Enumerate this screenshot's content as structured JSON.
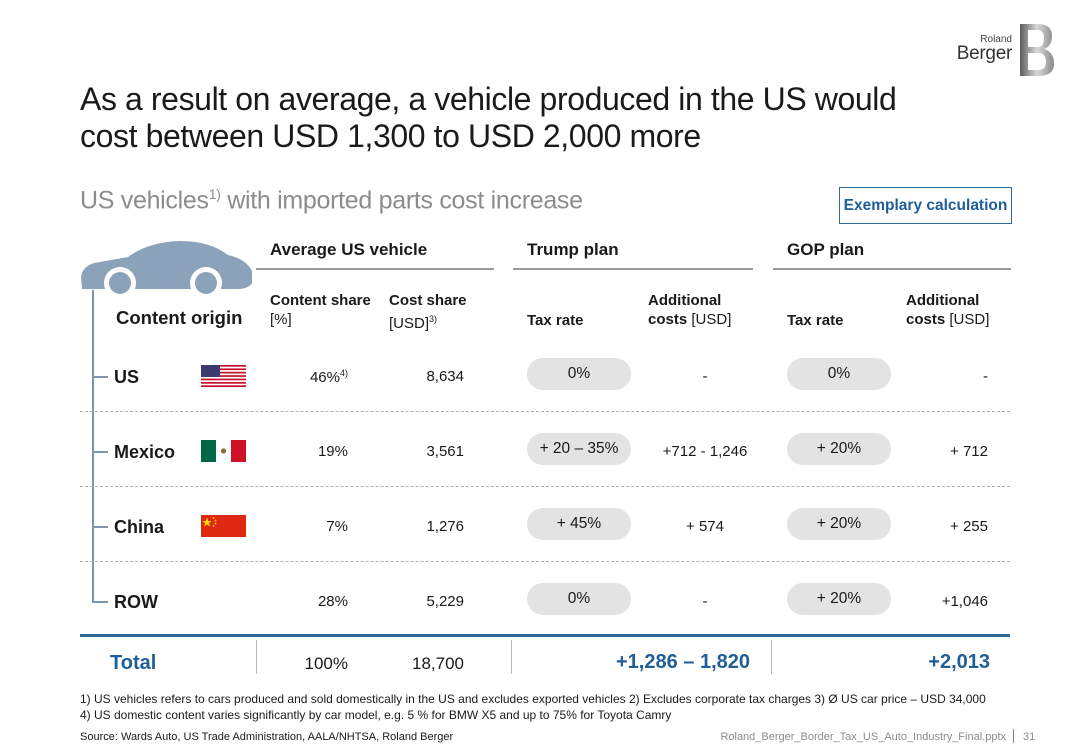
{
  "logo": {
    "line1": "Roland",
    "line2": "Berger"
  },
  "title": "As a result on average, a vehicle produced in the US would cost between USD 1,300 to USD 2,000 more",
  "subtitle": {
    "pre": "US vehicles",
    "sup": "1)",
    "post": " with imported parts cost increase"
  },
  "badge": "Exemplary calculation",
  "groups": {
    "avg": "Average US vehicle",
    "trump": "Trump plan",
    "gop": "GOP plan"
  },
  "headers": {
    "origin": "Content origin",
    "content_share_b": "Content share",
    "content_share_u": "[%]",
    "cost_share_b": "Cost share",
    "cost_share_u": "[USD]",
    "cost_share_sup": "3)",
    "tax_rate": "Tax rate",
    "add_costs_b": "Additional",
    "add_costs_b2": "costs",
    "add_costs_u": " [USD]"
  },
  "rows": [
    {
      "origin": "US",
      "share": "46%",
      "share_sup": "4)",
      "cost": "8,634",
      "trump_tax": "0%",
      "trump_add": "-",
      "gop_tax": "0%",
      "gop_add": "-"
    },
    {
      "origin": "Mexico",
      "share": "19%",
      "cost": "3,561",
      "trump_tax": "+ 20 – 35%",
      "trump_add": "+712 - 1,246",
      "gop_tax": "+ 20%",
      "gop_add": "+ 712"
    },
    {
      "origin": "China",
      "share": "7%",
      "cost": "1,276",
      "trump_tax": "+ 45%",
      "trump_add": "+ 574",
      "gop_tax": "+ 20%",
      "gop_add": "+ 255"
    },
    {
      "origin": "ROW",
      "share": "28%",
      "cost": "5,229",
      "trump_tax": "0%",
      "trump_add": "-",
      "gop_tax": "+ 20%",
      "gop_add": "+1,046"
    }
  ],
  "total": {
    "label": "Total",
    "share": "100%",
    "cost": "18,700",
    "trump": "+1,286 – 1,820",
    "gop": "+2,013"
  },
  "footnotes": {
    "line1": "1) US vehicles refers to cars produced and sold domestically in the US and excludes exported vehicles 2) Excludes corporate tax charges 3) Ø US car price – USD 34,000",
    "line2": "4) US domestic content varies significantly by car model, e.g. 5 % for BMW X5 and up to 75% for Toyota Camry"
  },
  "source": "Source: Wards Auto, US Trade Administration, AALA/NHTSA, Roland Berger",
  "filename": "Roland_Berger_Border_Tax_US_Auto_Industry_Final.pptx",
  "page": "31",
  "colors": {
    "accent": "#1f5e96",
    "tree": "#7d95ad",
    "pill": "#e3e3e3"
  }
}
